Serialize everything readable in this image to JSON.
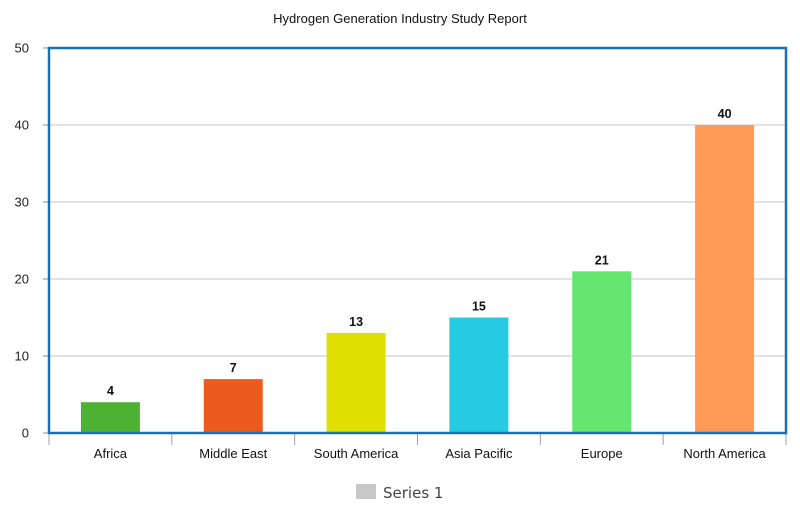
{
  "chart_data": {
    "type": "bar",
    "title": "Hydrogen Generation Industry Study Report",
    "categories": [
      "Africa",
      "Middle East",
      "South America",
      "Asia Pacific",
      "Europe",
      "North America"
    ],
    "series": [
      {
        "name": "Series 1",
        "values": [
          4,
          7,
          13,
          15,
          21,
          40
        ]
      }
    ],
    "value_labels": [
      "4",
      "7",
      "13",
      "15",
      "21",
      "40"
    ],
    "bar_colors": [
      "#4db233",
      "#ec5a1e",
      "#dfe000",
      "#26cbe3",
      "#65e670",
      "#ff9a57"
    ],
    "ylim": [
      0,
      50
    ],
    "yticks": [
      0,
      10,
      20,
      30,
      40,
      50
    ],
    "xlabel": "",
    "ylabel": "",
    "grid": true,
    "legend": {
      "position": "bottom-center",
      "swatch_color": "#c8c8c8"
    },
    "frame_color": "#1a6fb5"
  }
}
